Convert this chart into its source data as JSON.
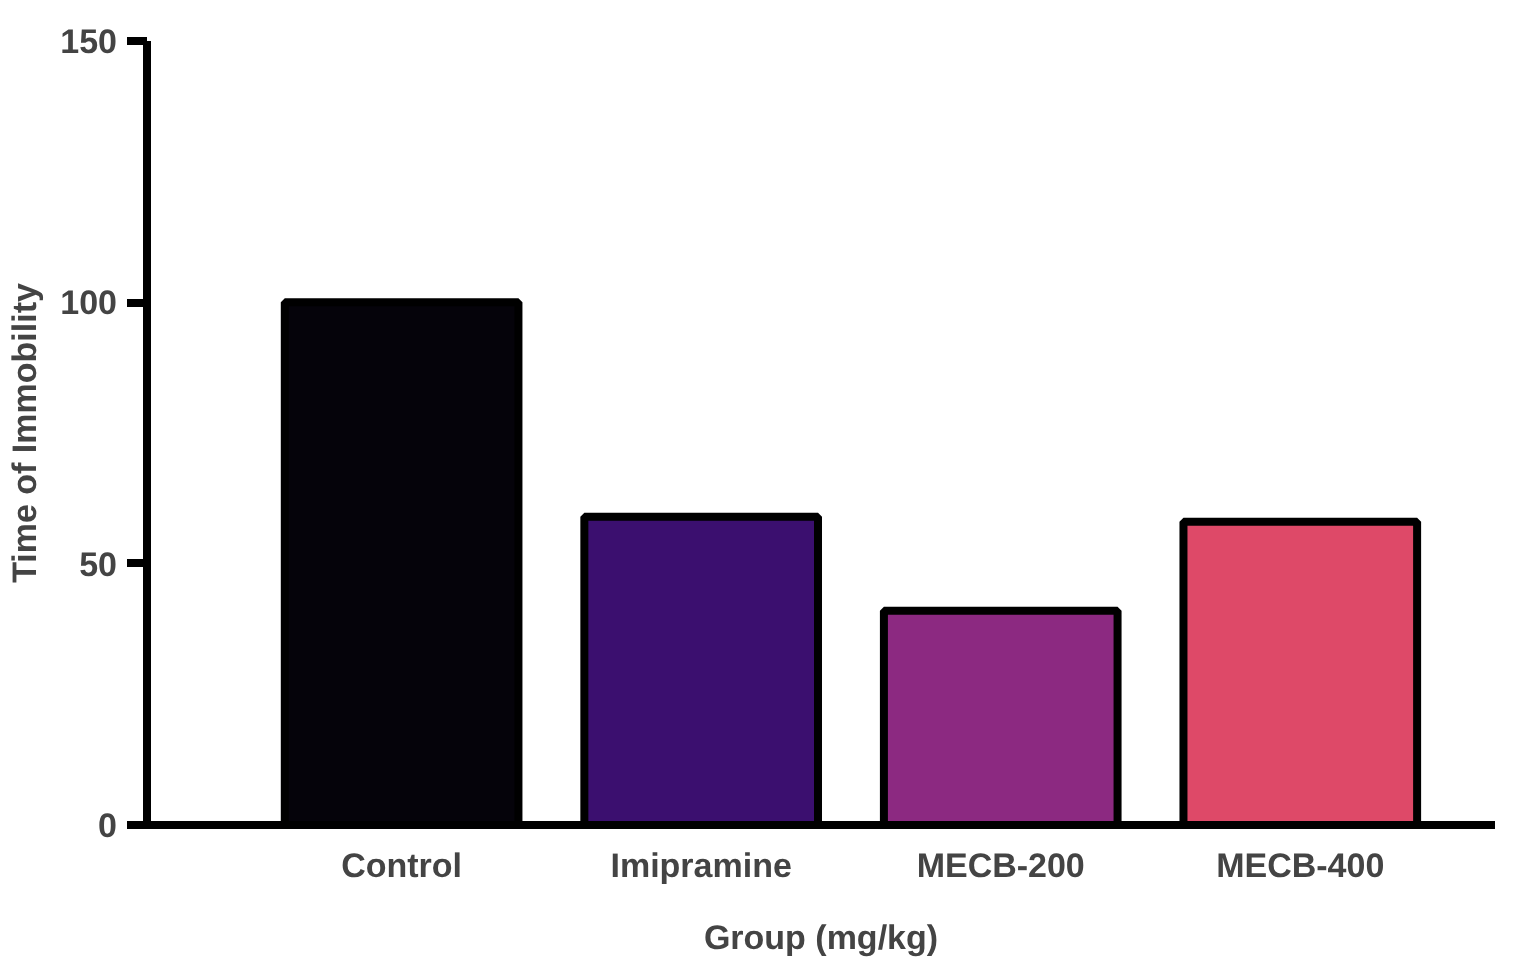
{
  "chart_data": {
    "type": "bar",
    "xlabel": "Group (mg/kg)",
    "ylabel": "Time of Immobility",
    "categories": [
      "Control",
      "Imipramine",
      "MECB-200",
      "MECB-400"
    ],
    "values": [
      100,
      59,
      41,
      58
    ],
    "colors": [
      "#05030a",
      "#3b0f6f",
      "#8c2981",
      "#de4968"
    ],
    "ylim": [
      0,
      150
    ],
    "yticks": [
      0,
      50,
      100,
      150
    ],
    "grid": false
  }
}
